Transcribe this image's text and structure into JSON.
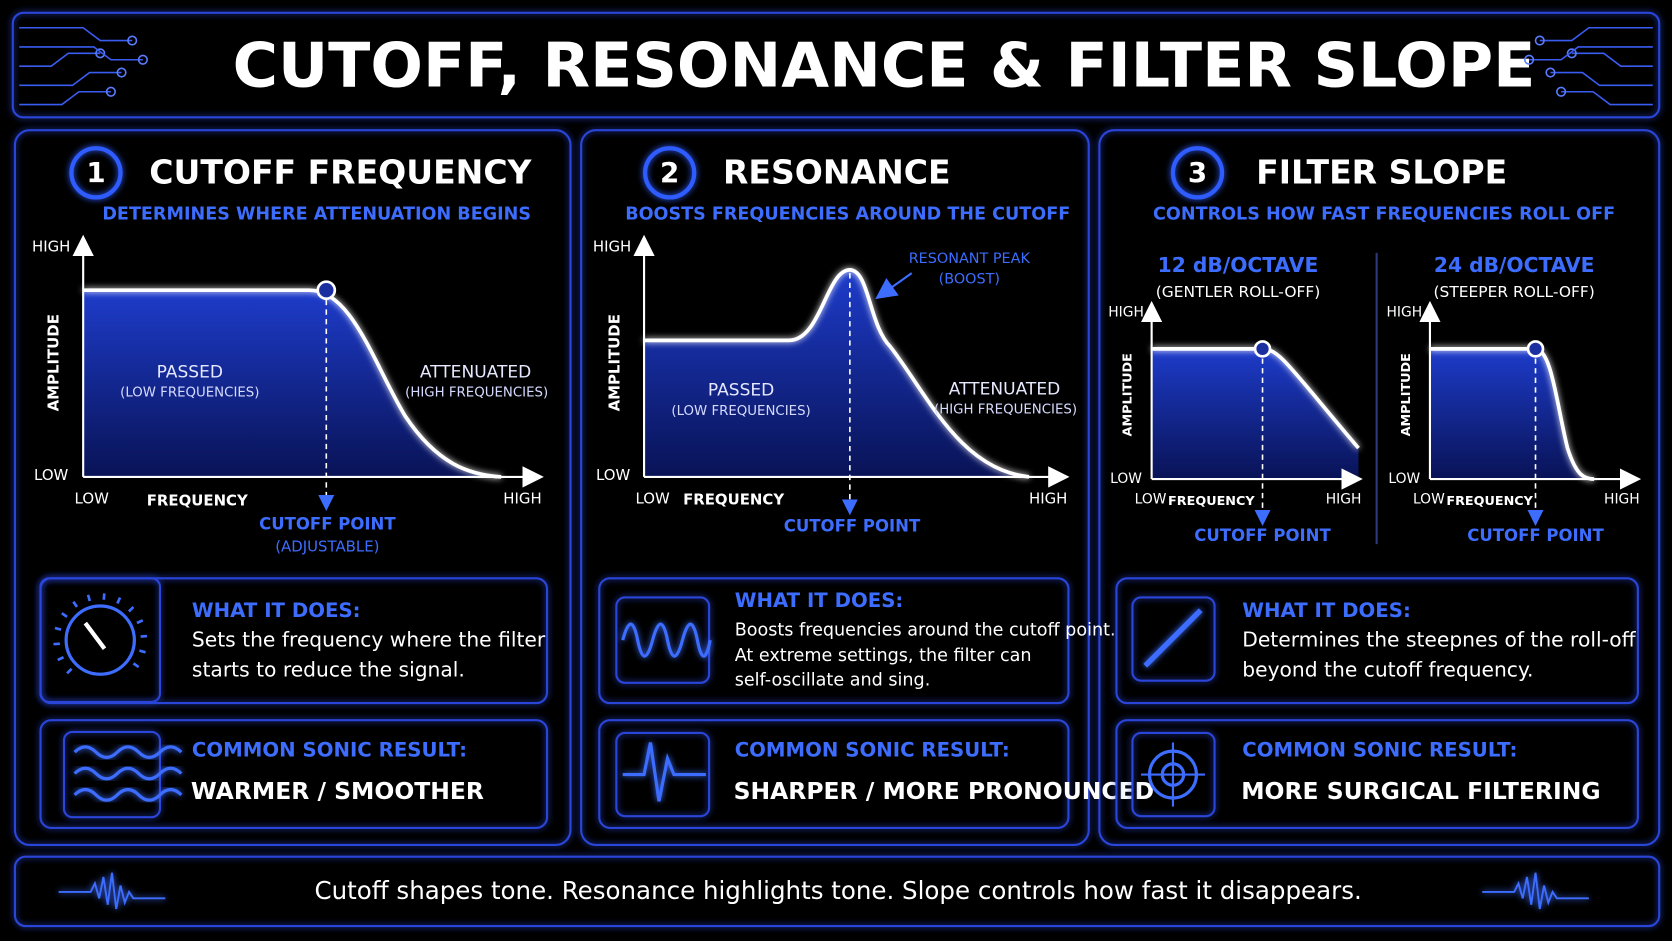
{
  "title": "CUTOFF, RESONANCE & FILTER SLOPE",
  "panels": [
    {
      "number": "1",
      "title": "CUTOFF FREQUENCY",
      "subtitle": "DETERMINES WHERE ATTENUATION BEGINS",
      "graph": {
        "y_high": "HIGH",
        "y_low": "LOW",
        "y_label": "AMPLITUDE",
        "x_low": "LOW",
        "x_label": "FREQUENCY",
        "x_high": "HIGH",
        "passed": "PASSED",
        "passed_note": "(LOW FREQUENCIES)",
        "attenuated": "ATTENUATED",
        "attenuated_note": "(HIGH FREQUENCIES)",
        "cutoff": "CUTOFF POINT",
        "cutoff_note": "(ADJUSTABLE)"
      },
      "what_heading": "WHAT IT DOES:",
      "what_lines": [
        "Sets the frequency where the filter",
        "starts to reduce the signal."
      ],
      "result_heading": "COMMON SONIC RESULT:",
      "result": "WARMER / SMOOTHER"
    },
    {
      "number": "2",
      "title": "RESONANCE",
      "subtitle": "BOOSTS FREQUENCIES AROUND THE CUTOFF",
      "graph": {
        "y_high": "HIGH",
        "y_low": "LOW",
        "y_label": "AMPLITUDE",
        "x_low": "LOW",
        "x_label": "FREQUENCY",
        "x_high": "HIGH",
        "passed": "PASSED",
        "passed_note": "(LOW FREQUENCIES)",
        "attenuated": "ATTENUATED",
        "attenuated_note": "(HIGH FREQUENCIES)",
        "cutoff": "CUTOFF POINT",
        "peak": "RESONANT PEAK",
        "peak_note": "(BOOST)"
      },
      "what_heading": "WHAT IT DOES:",
      "what_lines": [
        "Boosts frequencies around the cutoff point.",
        "At extreme settings, the filter can",
        "self-oscillate and sing."
      ],
      "result_heading": "COMMON SONIC RESULT:",
      "result": "SHARPER / MORE PRONOUNCED"
    },
    {
      "number": "3",
      "title": "FILTER SLOPE",
      "subtitle": "CONTROLS HOW FAST FREQUENCIES ROLL OFF",
      "graphs": [
        {
          "slope": "12 dB/OCTAVE",
          "slope_note": "(GENTLER ROLL-OFF)",
          "y_high": "HIGH",
          "y_low": "LOW",
          "y_label": "AMPLITUDE",
          "x_low": "LOW",
          "x_label": "FREQUENCY",
          "x_high": "HIGH",
          "cutoff": "CUTOFF POINT"
        },
        {
          "slope": "24 dB/OCTAVE",
          "slope_note": "(STEEPER ROLL-OFF)",
          "y_high": "HIGH",
          "y_low": "LOW",
          "y_label": "AMPLITUDE",
          "x_low": "LOW",
          "x_label": "FREQUENCY",
          "x_high": "HIGH",
          "cutoff": "CUTOFF POINT"
        }
      ],
      "what_heading": "WHAT IT DOES:",
      "what_lines": [
        "Determines the  steepnes of the roll-off",
        "beyond the cutoff frequency."
      ],
      "result_heading": "COMMON SONIC RESULT:",
      "result": "MORE SURGICAL FILTERING"
    }
  ],
  "footer": "Cutoff shapes tone. Resonance highlights tone. Slope controls how fast it disappears."
}
